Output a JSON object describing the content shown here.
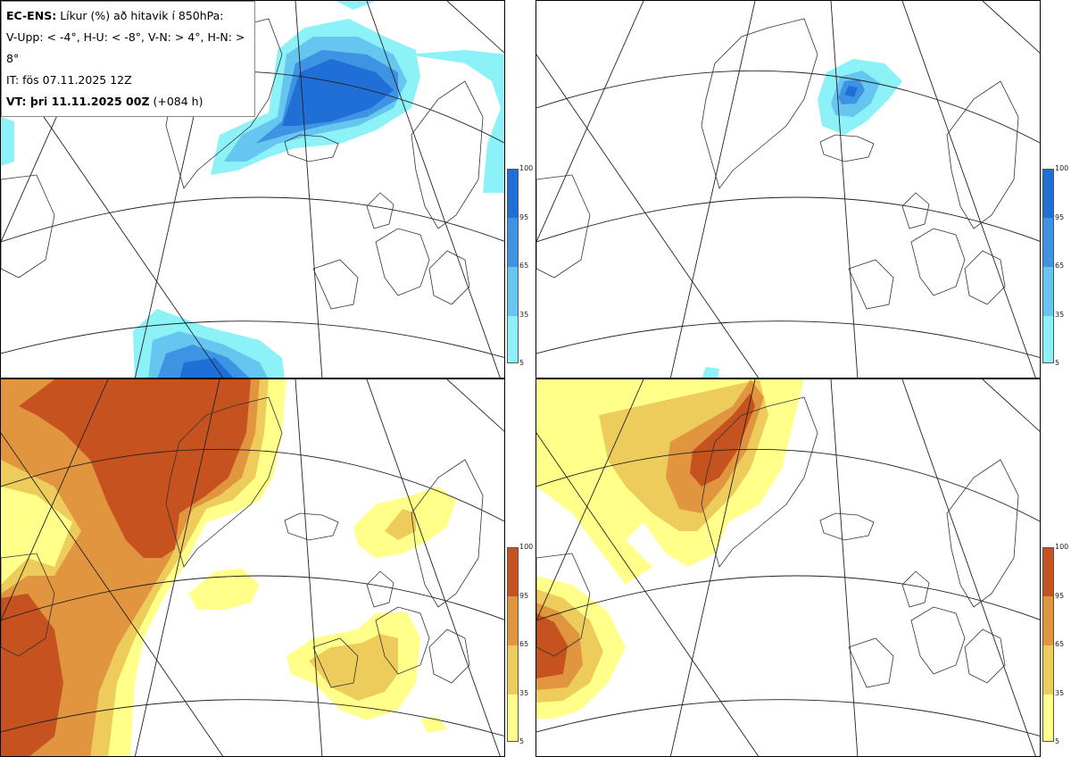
{
  "header": {
    "product": "EC-ENS:",
    "title": "Líkur (%) að hitavik í 850hPa:",
    "thresholds": "V-Upp: < -4°, H-U: < -8°, V-N: > 4°, H-N: > 8°",
    "init_time": "IT: fös 07.11.2025 12Z",
    "valid_label": "VT: þri 11.11.2025 00Z",
    "lead_time": "(+084 h)"
  },
  "colorbars": {
    "ticks": [
      "100",
      "95",
      "65",
      "35",
      "5"
    ],
    "cold_colors": [
      "#1f6fd6",
      "#3f93e3",
      "#66c6f0",
      "#8cf2f7"
    ],
    "warm_colors": [
      "#c6531f",
      "#e1953f",
      "#edcc5c",
      "#ffff8a"
    ]
  },
  "panels": [
    {
      "id": "V-Upp",
      "meaning": "cold anomaly < -4"
    },
    {
      "id": "H-U",
      "meaning": "cold anomaly < -8"
    },
    {
      "id": "V-N",
      "meaning": "warm anomaly > 4"
    },
    {
      "id": "H-N",
      "meaning": "warm anomaly > 8"
    }
  ]
}
